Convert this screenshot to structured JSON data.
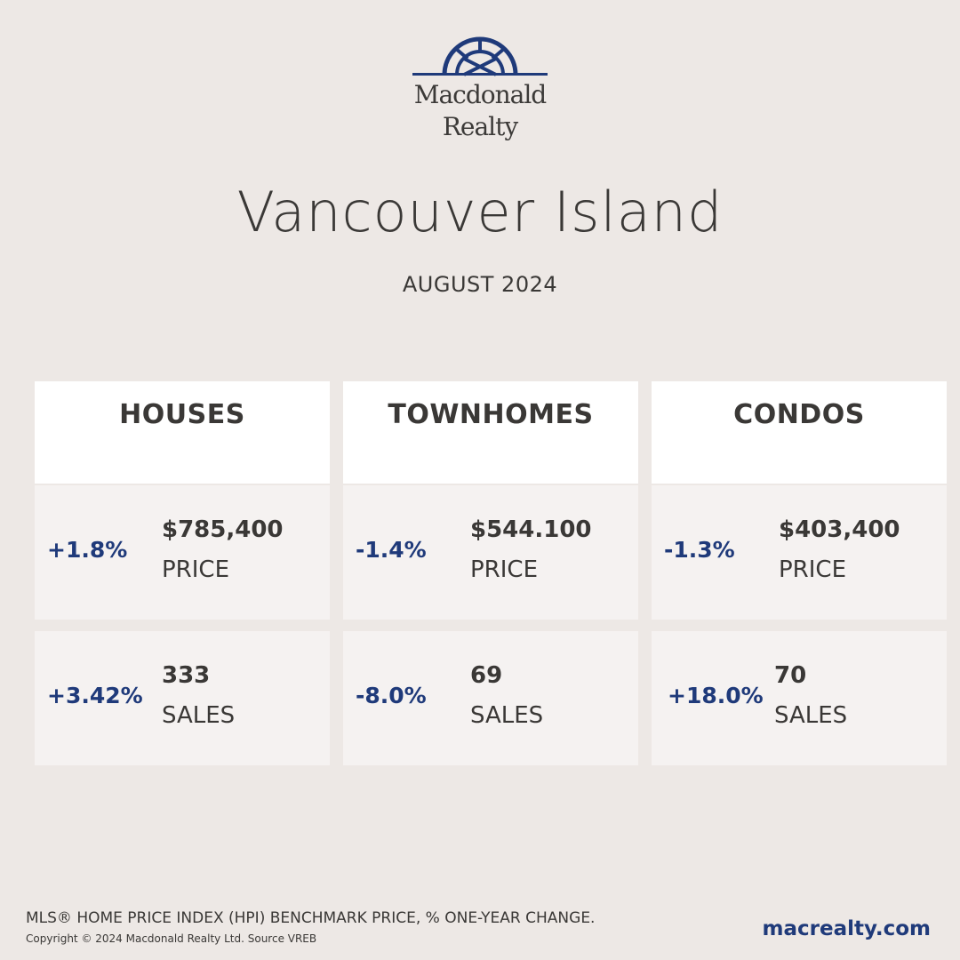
{
  "brand": {
    "logo_line1": "Macdonald",
    "logo_line2": "Realty",
    "logo_icon": "sunrise-arch-icon",
    "accent_color": "#1f3a7a"
  },
  "title": "Vancouver Island",
  "subtitle": "AUGUST 2024",
  "categories": [
    {
      "name": "HOUSES",
      "price": {
        "change": "+1.8%",
        "value": "$785,400",
        "label": "PRICE"
      },
      "sales": {
        "change": "+3.42%",
        "value": "333",
        "label": "SALES"
      }
    },
    {
      "name": "TOWNHOMES",
      "price": {
        "change": "-1.4%",
        "value": "$544.100",
        "label": "PRICE"
      },
      "sales": {
        "change": "-8.0%",
        "value": "69",
        "label": "SALES"
      }
    },
    {
      "name": "CONDOS",
      "price": {
        "change": "-1.3%",
        "value": "$403,400",
        "label": "PRICE"
      },
      "sales": {
        "change": "+18.0%",
        "value": "70",
        "label": "SALES"
      }
    }
  ],
  "footer": {
    "note": "MLS® HOME PRICE INDEX (HPI) BENCHMARK PRICE, % ONE-YEAR CHANGE.",
    "copyright": "Copyright © 2024 Macdonald Realty Ltd. Source VREB",
    "website": "macrealty.com"
  }
}
